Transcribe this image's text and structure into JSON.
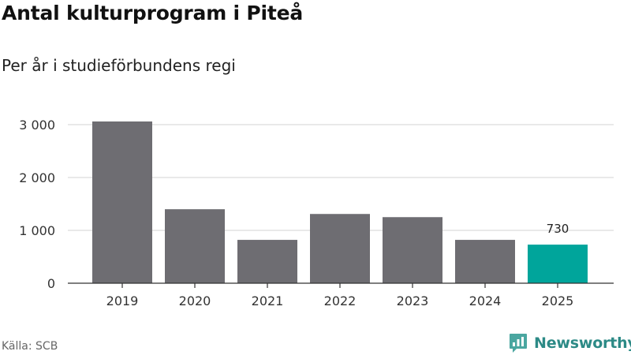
{
  "header": {
    "title": "Antal kulturprogram i Piteå",
    "subtitle": "Per år i studieförbundens regi"
  },
  "chart_data": {
    "type": "bar",
    "title": "Antal kulturprogram i Piteå",
    "subtitle": "Per år i studieförbundens regi",
    "xlabel": "",
    "ylabel": "",
    "categories": [
      "2019",
      "2020",
      "2021",
      "2022",
      "2023",
      "2024",
      "2025"
    ],
    "values": [
      3060,
      1400,
      820,
      1310,
      1250,
      820,
      730
    ],
    "ylim": [
      0,
      3000
    ],
    "yticks": [
      0,
      1000,
      2000,
      3000
    ],
    "ytick_labels": [
      "0",
      "1 000",
      "2 000",
      "3 000"
    ],
    "grid": true,
    "highlight_index": 6,
    "data_labels": [
      {
        "index": 6,
        "text": "730"
      }
    ],
    "bar_color": "#6e6d72",
    "highlight_color": "#00a59b",
    "grid_color": "#dcdcdc",
    "axis_color": "#333333"
  },
  "footer": {
    "source": "Källa: SCB",
    "brand": "Newsworthy",
    "brand_icon": "newsworthy-logo-icon",
    "brand_color": "#2c8a86"
  }
}
